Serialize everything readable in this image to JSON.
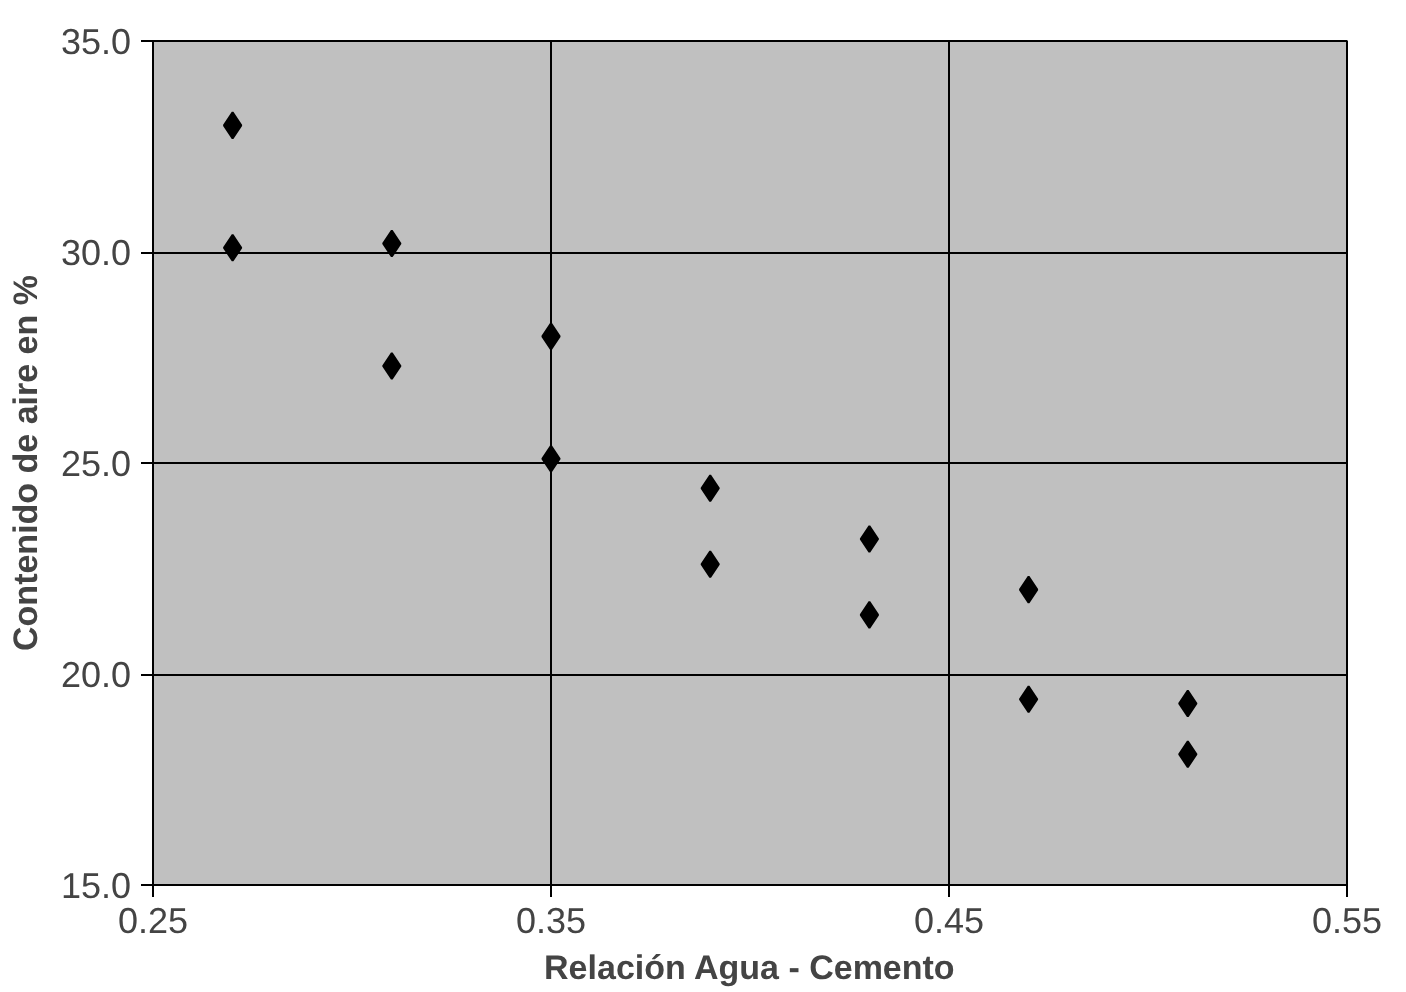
{
  "chart_data": {
    "type": "scatter",
    "xlabel": "Relación Agua - Cemento",
    "ylabel": "Contenido de aire en %",
    "x": [
      0.27,
      0.27,
      0.31,
      0.31,
      0.35,
      0.35,
      0.39,
      0.39,
      0.43,
      0.43,
      0.47,
      0.47,
      0.51,
      0.51
    ],
    "series": [
      {
        "color": "#000000",
        "values": [
          33.0,
          30.1,
          30.2,
          27.3,
          28.0,
          25.1,
          24.4,
          22.6,
          23.2,
          21.4,
          22.0,
          19.4,
          19.3,
          18.1
        ]
      }
    ],
    "xlim": [
      0.25,
      0.55
    ],
    "ylim": [
      15.0,
      35.0
    ],
    "xticks": [
      0.25,
      0.35,
      0.45,
      0.55
    ],
    "yticks": [
      {
        "value": 15,
        "label": "15.0"
      },
      {
        "value": 20,
        "label": "20.0"
      },
      {
        "value": 25,
        "label": "25.0"
      },
      {
        "value": 30,
        "label": "30.0"
      },
      {
        "value": 35,
        "label": "35.0"
      }
    ],
    "grid": true,
    "marker": "diamond"
  }
}
